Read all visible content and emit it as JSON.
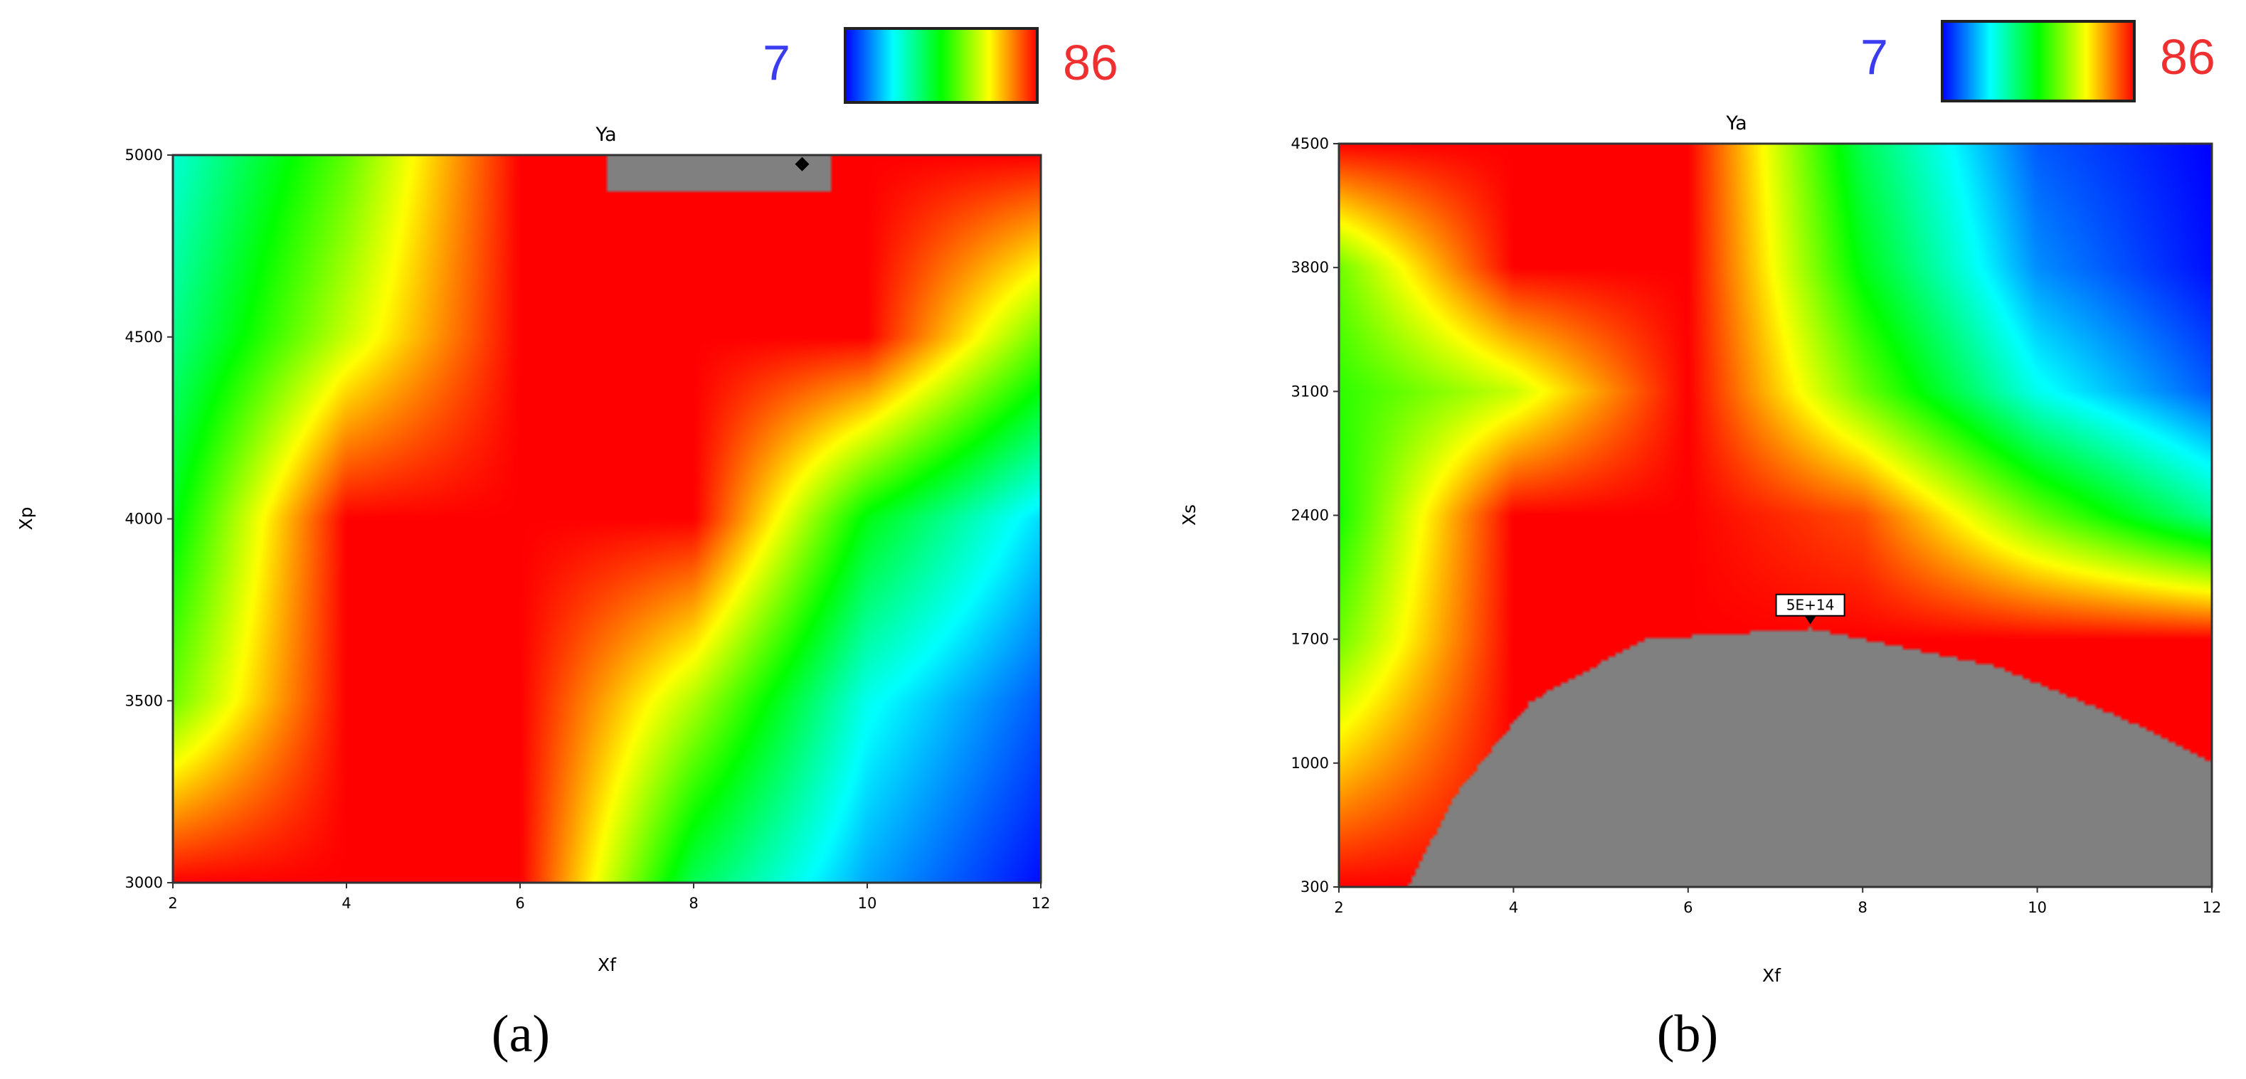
{
  "colors": {
    "scale": [
      "#0000ff",
      "#00ffff",
      "#00ff00",
      "#ffff00",
      "#ff0000"
    ],
    "out_of_range": "#808080"
  },
  "colorbar": {
    "min_label": "7",
    "max_label": "86",
    "min": 7,
    "max": 86
  },
  "chart_data": [
    {
      "type": "heatmap",
      "panel_label": "(a)",
      "title": "Ya",
      "xlabel": "Xf",
      "ylabel": "Xp",
      "xlim": [
        2,
        12
      ],
      "ylim": [
        3000,
        5000
      ],
      "x_ticks": [
        "2",
        "4",
        "6",
        "8",
        "10",
        "12"
      ],
      "y_ticks": [
        "3000",
        "3500",
        "4000",
        "4500",
        "5000"
      ],
      "grid": false,
      "zmin": 7,
      "zmax": 86,
      "z_grid": {
        "x": [
          2,
          4,
          6,
          8,
          10,
          12
        ],
        "y": [
          3000,
          3500,
          4000,
          4500,
          5000
        ],
        "z": [
          [
            86,
            86,
            86,
            40,
            20,
            8
          ],
          [
            55,
            86,
            86,
            60,
            28,
            14
          ],
          [
            45,
            86,
            86,
            86,
            45,
            24
          ],
          [
            36,
            62,
            86,
            86,
            86,
            55
          ],
          [
            30,
            54,
            86,
            86,
            86,
            86
          ]
        ]
      },
      "out_of_range_region": {
        "x_range": [
          7.0,
          9.6
        ],
        "y_range": [
          4900,
          5000
        ]
      },
      "marker": {
        "x": 9.25,
        "y": 4975
      }
    },
    {
      "type": "heatmap",
      "panel_label": "(b)",
      "title": "Ya",
      "xlabel": "Xf",
      "ylabel": "Xs",
      "xlim": [
        2,
        12
      ],
      "ylim": [
        300,
        4500
      ],
      "x_ticks": [
        "2",
        "4",
        "6",
        "8",
        "10",
        "12"
      ],
      "y_ticks": [
        "300",
        "1000",
        "1700",
        "2400",
        "3100",
        "3800",
        "4500"
      ],
      "grid": false,
      "zmin": 7,
      "zmax": 86,
      "z_grid": {
        "x": [
          2,
          4,
          6,
          8,
          10,
          12
        ],
        "y": [
          300,
          1000,
          1700,
          2400,
          3100,
          3800,
          4500
        ],
        "z": [
          [
            86,
            86,
            86,
            86,
            86,
            86
          ],
          [
            70,
            86,
            86,
            86,
            86,
            86
          ],
          [
            55,
            86,
            86,
            86,
            86,
            86
          ],
          [
            48,
            86,
            86,
            80,
            55,
            35
          ],
          [
            50,
            62,
            86,
            55,
            28,
            14
          ],
          [
            55,
            86,
            86,
            45,
            18,
            8
          ],
          [
            86,
            86,
            86,
            40,
            14,
            7
          ]
        ]
      },
      "out_of_range_boundary": [
        [
          2.8,
          300
        ],
        [
          3.3,
          800
        ],
        [
          4.2,
          1350
        ],
        [
          5.5,
          1700
        ],
        [
          7.4,
          1760
        ],
        [
          9.5,
          1550
        ],
        [
          11.0,
          1250
        ],
        [
          12.0,
          1000
        ]
      ],
      "annotation": {
        "text": "5E+14",
        "x": 7.4,
        "y": 1760
      }
    }
  ]
}
